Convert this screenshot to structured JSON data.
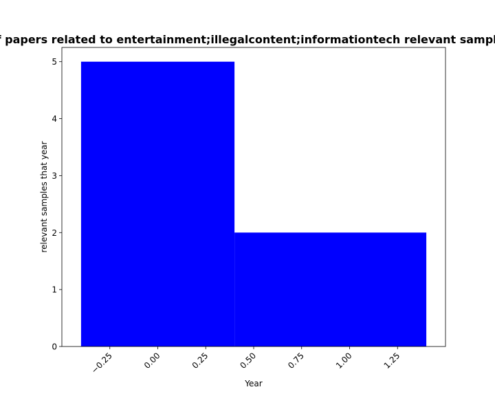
{
  "chart_data": {
    "type": "bar",
    "title": "Number of papers related to entertainment;illegalcontent;informationtech relevant samples that year",
    "xlabel": "Year",
    "ylabel": "relevant samples that year",
    "xlim": [
      -0.5,
      1.5
    ],
    "ylim": [
      0,
      5.25
    ],
    "bar_color": "#0000ff",
    "bars": [
      {
        "x_start": -0.4,
        "x_end": 0.4,
        "value": 5
      },
      {
        "x_start": 0.4,
        "x_end": 1.4,
        "value": 2
      }
    ],
    "x_ticks": [
      -0.25,
      0.0,
      0.25,
      0.5,
      0.75,
      1.0,
      1.25
    ],
    "x_tick_labels": [
      "−0.25",
      "0.00",
      "0.25",
      "0.50",
      "0.75",
      "1.00",
      "1.25"
    ],
    "y_ticks": [
      0,
      1,
      2,
      3,
      4,
      5
    ],
    "y_tick_labels": [
      "0",
      "1",
      "2",
      "3",
      "4",
      "5"
    ],
    "grid": false,
    "legend": "none"
  }
}
